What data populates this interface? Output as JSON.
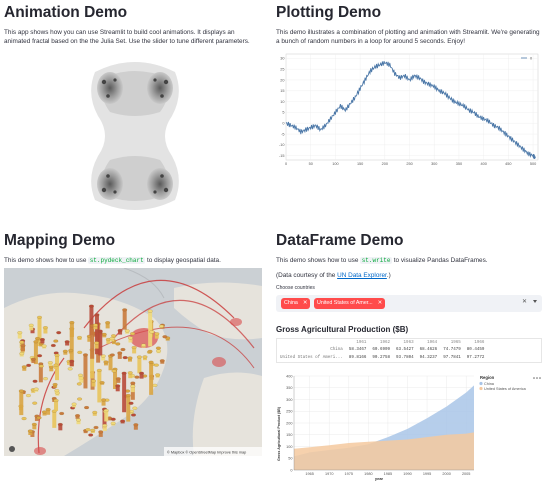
{
  "animation": {
    "title": "Animation Demo",
    "description": "This app shows how you can use Streamlit to build cool animations. It displays an animated fractal based on the the Julia Set. Use the slider to tune different parameters."
  },
  "plotting": {
    "title": "Plotting Demo",
    "description": "This demo illustrates a combination of plotting and animation with Streamlit. We're generating a bunch of random numbers in a loop for around 5 seconds. Enjoy!",
    "legend_label": "0",
    "chart_data": {
      "type": "line",
      "x_ticks": [
        0,
        50,
        100,
        150,
        200,
        250,
        300,
        350,
        400,
        450,
        500
      ],
      "y_ticks": [
        -15,
        -10,
        -5,
        0,
        5,
        10,
        15,
        20,
        25,
        30
      ],
      "xlim": [
        0,
        510
      ],
      "ylim": [
        -17,
        32
      ],
      "series": [
        {
          "name": "0",
          "x": [
            0,
            10,
            20,
            30,
            40,
            50,
            60,
            70,
            80,
            90,
            100,
            110,
            120,
            130,
            140,
            150,
            160,
            170,
            180,
            190,
            200,
            210,
            220,
            230,
            240,
            250,
            260,
            270,
            280,
            290,
            300,
            310,
            320,
            330,
            340,
            350,
            360,
            370,
            380,
            390,
            400,
            410,
            420,
            430,
            440,
            450,
            460,
            470,
            480,
            490,
            500,
            505
          ],
          "values": [
            0,
            -1,
            -2,
            -4,
            -3,
            -2,
            -1,
            -3,
            -1,
            2,
            5,
            8,
            6,
            9,
            12,
            16,
            20,
            24,
            26,
            27,
            28,
            27,
            23,
            21,
            22,
            20,
            22,
            21,
            19,
            18,
            17,
            15,
            14,
            12,
            10,
            9,
            8,
            6,
            5,
            3,
            2,
            1,
            -1,
            -2,
            -4,
            -6,
            -8,
            -10,
            -12,
            -14,
            -15,
            -16
          ]
        }
      ]
    }
  },
  "mapping": {
    "title": "Mapping Demo",
    "description_pre": "This demo shows how to use ",
    "code": "st.pydeck_chart",
    "description_post": " to display geospatial data.",
    "attribution": "© Mapbox © OpenStreetMap Improve this map"
  },
  "dataframe": {
    "title": "DataFrame Demo",
    "description_pre": "This demo shows how to use ",
    "code": "st.write",
    "description_post": " to visualize Pandas DataFrames.",
    "courtesy_pre": "(Data courtesy of the ",
    "courtesy_link": "UN Data Explorer",
    "courtesy_post": ".)",
    "select_label": "Choose countries",
    "selected": [
      "China",
      "United States of Amer..."
    ],
    "table_title": "Gross Agricultural Production ($B)",
    "columns": [
      "1961",
      "1962",
      "1963",
      "1964",
      "1965",
      "1966"
    ],
    "rows": [
      {
        "name": "China",
        "values": [
          "58.3467",
          "60.6909",
          "63.5427",
          "68.4626",
          "74.7479",
          "80.4459"
        ]
      },
      {
        "name": "United States of Ameri...",
        "values": [
          "89.8166",
          "90.2758",
          "93.7804",
          "94.3237",
          "97.7841",
          "97.2772"
        ]
      }
    ],
    "chart_data": {
      "type": "area",
      "xlabel": "year",
      "ylabel": "Gross Agricultural Product ($B)",
      "legend_title": "Region",
      "x_ticks": [
        1965,
        1970,
        1975,
        1980,
        1985,
        1990,
        1995,
        2000,
        2005
      ],
      "y_ticks": [
        0,
        50,
        100,
        150,
        200,
        250,
        300,
        350,
        400
      ],
      "xlim": [
        1961,
        2007
      ],
      "ylim": [
        0,
        400
      ],
      "x": [
        1961,
        1965,
        1970,
        1975,
        1980,
        1985,
        1990,
        1995,
        2000,
        2005,
        2007
      ],
      "series": [
        {
          "name": "China",
          "color": "#a9c5e8",
          "values": [
            58,
            75,
            85,
            95,
            110,
            140,
            175,
            220,
            270,
            330,
            360
          ]
        },
        {
          "name": "United States of America",
          "color": "#f5c99f",
          "values": [
            90,
            97,
            105,
            115,
            120,
            125,
            130,
            140,
            150,
            155,
            160
          ]
        }
      ]
    }
  },
  "colors": {
    "line": "#4c78a8",
    "chip": "#ff4b4b",
    "china_area": "#a9c5e8",
    "us_area": "#f5c99f"
  }
}
